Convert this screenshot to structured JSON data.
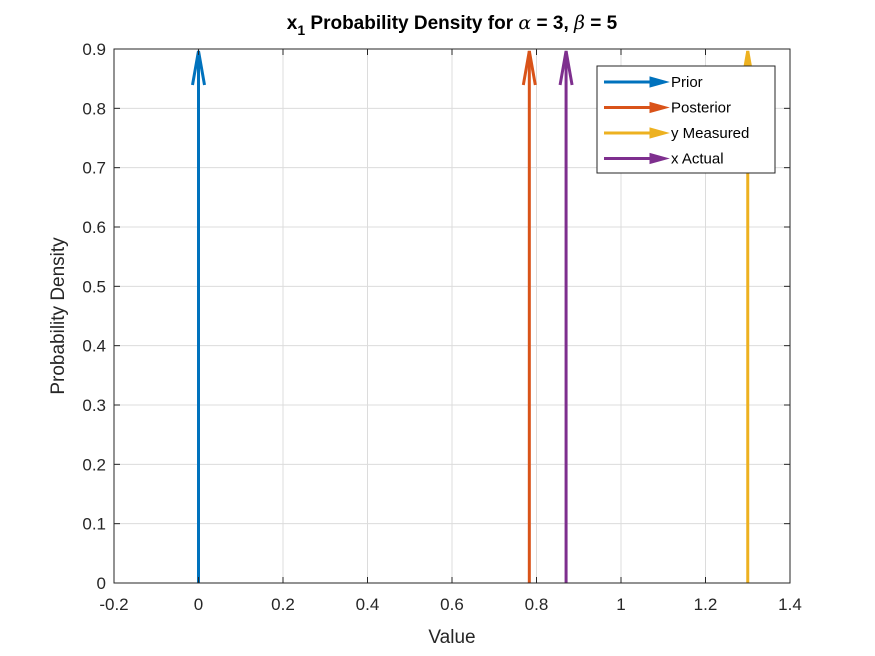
{
  "chart_data": {
    "type": "line",
    "title": {
      "part1": "x",
      "subscript": "1",
      "part2": " Probability Density for ",
      "alpha_symbol": "α",
      "part3": " = 3, ",
      "beta_symbol": "β",
      "part4": " = 5"
    },
    "xlabel": "Value",
    "ylabel": "Probability Density",
    "xlim": [
      -0.2,
      1.4
    ],
    "ylim": [
      0,
      0.9
    ],
    "xticks": [
      -0.2,
      0,
      0.2,
      0.4,
      0.6,
      0.8,
      1,
      1.2,
      1.4
    ],
    "xtick_labels": [
      "-0.2",
      "0",
      "0.2",
      "0.4",
      "0.6",
      "0.8",
      "1",
      "1.2",
      "1.4"
    ],
    "yticks": [
      0,
      0.1,
      0.2,
      0.3,
      0.4,
      0.5,
      0.6,
      0.7,
      0.8,
      0.9
    ],
    "ytick_labels": [
      "0",
      "0.1",
      "0.2",
      "0.3",
      "0.4",
      "0.5",
      "0.6",
      "0.7",
      "0.8",
      "0.9"
    ],
    "grid": true,
    "legend_position": "top-right",
    "series": [
      {
        "name": "Prior",
        "x": 0,
        "y": [
          0,
          0.9
        ],
        "color": "#0072BD"
      },
      {
        "name": "Posterior",
        "x": 0.783,
        "y": [
          0,
          0.9
        ],
        "color": "#D95319"
      },
      {
        "name": "y Measured",
        "x": 1.3,
        "y": [
          0,
          0.9
        ],
        "color": "#EDB120"
      },
      {
        "name": "x Actual",
        "x": 0.87,
        "y": [
          0,
          0.9
        ],
        "color": "#7E2F8E"
      }
    ]
  }
}
